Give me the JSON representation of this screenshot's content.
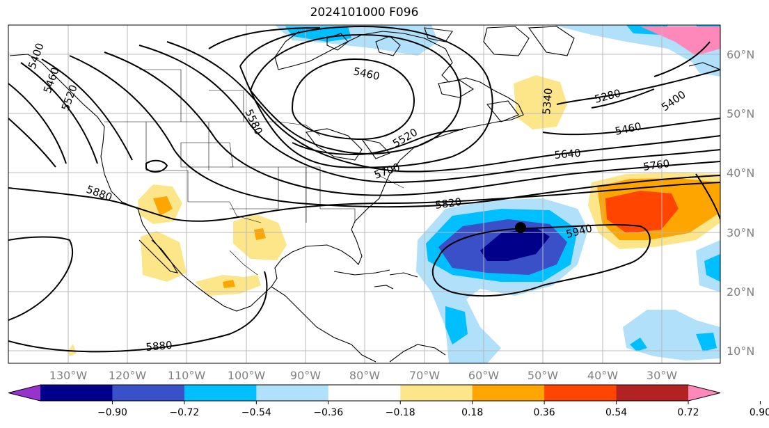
{
  "title": "2024101000 F096",
  "latitude_labels": [
    "60°N",
    "50°N",
    "40°N",
    "30°N",
    "20°N",
    "10°N"
  ],
  "longitude_labels": [
    "130°W",
    "120°W",
    "110°W",
    "100°W",
    "90°W",
    "80°W",
    "70°W",
    "60°W",
    "50°W",
    "40°W",
    "30°W"
  ],
  "contour_labels": [
    "5460",
    "5340",
    "5280",
    "5400",
    "5580",
    "5520",
    "5460",
    "5640",
    "5760",
    "5700",
    "5880",
    "5820",
    "5940",
    "5880",
    "5400",
    "5460",
    "5520"
  ],
  "colorbar": {
    "ticks": [
      "−0.90",
      "−0.72",
      "−0.54",
      "−0.36",
      "−0.18",
      "0.18",
      "0.36",
      "0.54",
      "0.72",
      "0.90"
    ],
    "colors": [
      "#9932cc",
      "#00008b",
      "#3a50c8",
      "#00bfff",
      "#b0e0fa",
      "#ffffff",
      "#fde68a",
      "#ffa500",
      "#ff4500",
      "#b22222",
      "#ff88bb"
    ]
  },
  "marker": "black-dot"
}
